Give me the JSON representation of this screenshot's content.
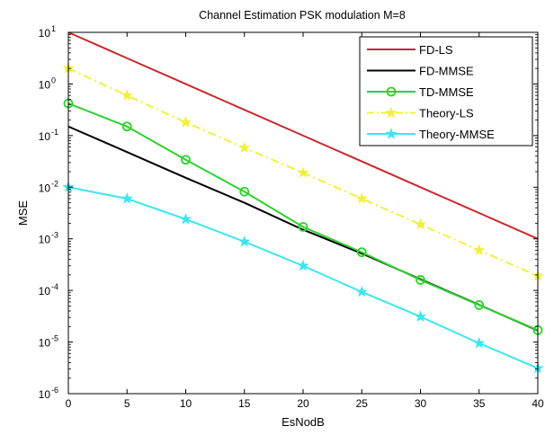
{
  "chart_data": {
    "type": "line",
    "title": "Channel Estimation PSK modulation M=8",
    "xlabel": "EsNodB",
    "ylabel": "MSE",
    "xlim": [
      0,
      40
    ],
    "ylim": [
      1e-06,
      10
    ],
    "yscale": "log",
    "x_ticks": [
      0,
      5,
      10,
      15,
      20,
      25,
      30,
      35,
      40
    ],
    "y_tick_exponents": [
      -6,
      -5,
      -4,
      -3,
      -2,
      -1,
      0,
      1
    ],
    "y_tick_base": "10",
    "grid": false,
    "legend_position": "top-right",
    "x": [
      0,
      5,
      10,
      15,
      20,
      25,
      30,
      35,
      40
    ],
    "series": [
      {
        "name": "FD-LS",
        "color": "#c8282d",
        "line": "solid",
        "marker": "none",
        "values": [
          10,
          3.16,
          1.0,
          0.316,
          0.1,
          0.0316,
          0.01,
          0.00316,
          0.001
        ]
      },
      {
        "name": "FD-MMSE",
        "color": "#000000",
        "line": "solid",
        "marker": "none",
        "values": [
          0.15,
          0.048,
          0.0152,
          0.005,
          0.0015,
          0.00052,
          0.000165,
          5.25e-05,
          1.67e-05
        ]
      },
      {
        "name": "TD-MMSE",
        "color": "#2ed22e",
        "line": "solid",
        "marker": "circle",
        "values": [
          0.42,
          0.15,
          0.034,
          0.0082,
          0.0017,
          0.00055,
          0.00016,
          5.2e-05,
          1.7e-05
        ]
      },
      {
        "name": "Theory-LS",
        "color": "#f0f03c",
        "line": "dashdot",
        "marker": "star",
        "values": [
          2.0,
          0.6,
          0.18,
          0.058,
          0.019,
          0.006,
          0.0019,
          0.0006,
          0.00019
        ]
      },
      {
        "name": "Theory-MMSE",
        "color": "#3ce6f0",
        "line": "solid",
        "marker": "star",
        "values": [
          0.01,
          0.006,
          0.0024,
          0.00088,
          0.0003,
          9.35e-05,
          3.1e-05,
          9.5e-06,
          3.1e-06
        ]
      }
    ]
  }
}
